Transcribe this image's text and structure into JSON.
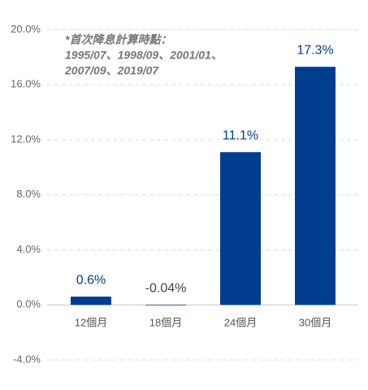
{
  "chart_data": {
    "type": "bar",
    "annotation": [
      "*首次降息計算時點：",
      "1995/07、1998/09、2001/01、",
      "2007/09、2019/07"
    ],
    "categories": [
      "12個月",
      "18個月",
      "24個月",
      "30個月"
    ],
    "values": [
      0.6,
      -0.04,
      11.1,
      17.3
    ],
    "value_labels": [
      "0.6%",
      "-0.04%",
      "11.1%",
      "17.3%"
    ],
    "color": "#003d8f",
    "ylim": [
      -4,
      20
    ],
    "yticks": [
      {
        "value": -4,
        "label": "-4.0%"
      },
      {
        "value": 0,
        "label": "0.0%"
      },
      {
        "value": 4,
        "label": "4.0%"
      },
      {
        "value": 8,
        "label": "8.0%"
      },
      {
        "value": 12,
        "label": "12.0%"
      },
      {
        "value": 16,
        "label": "16.0%"
      },
      {
        "value": 20,
        "label": "20.0%"
      }
    ],
    "grid": true
  }
}
